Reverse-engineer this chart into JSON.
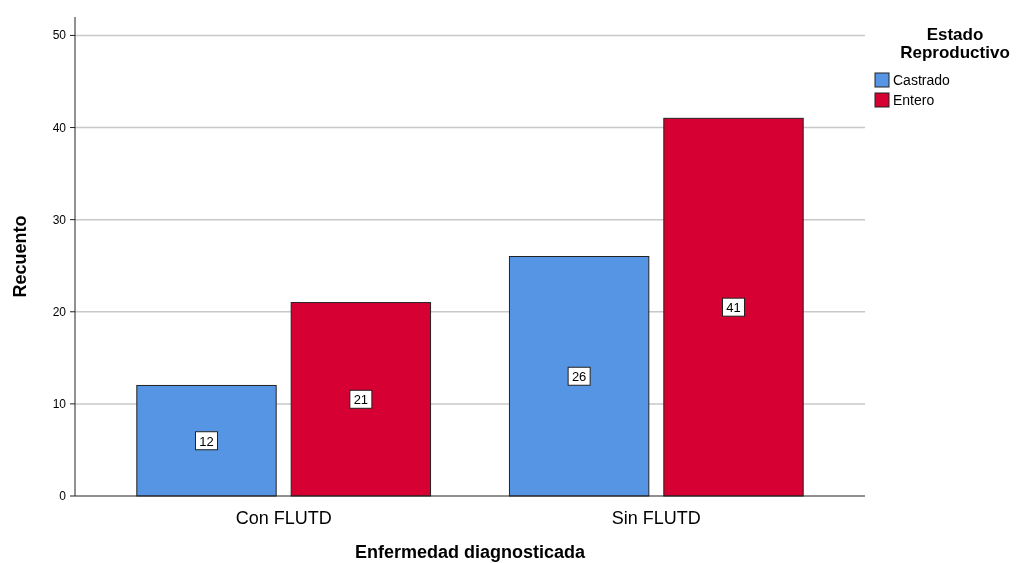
{
  "chart_data": {
    "type": "bar",
    "xlabel": "Enfermedad diagnosticada",
    "ylabel": "Recuento",
    "legend_title": "Estado Reproductivo",
    "categories": [
      "Con FLUTD",
      "Sin FLUTD"
    ],
    "series": [
      {
        "name": "Castrado",
        "color": "#5595e3",
        "values": [
          12,
          26
        ]
      },
      {
        "name": "Entero",
        "color": "#d70032",
        "values": [
          21,
          41
        ]
      }
    ],
    "ylim": [
      0,
      52
    ],
    "yticks": [
      0,
      10,
      20,
      30,
      40,
      50
    ],
    "grid": "y",
    "legend": "top right",
    "data_labels": true
  }
}
